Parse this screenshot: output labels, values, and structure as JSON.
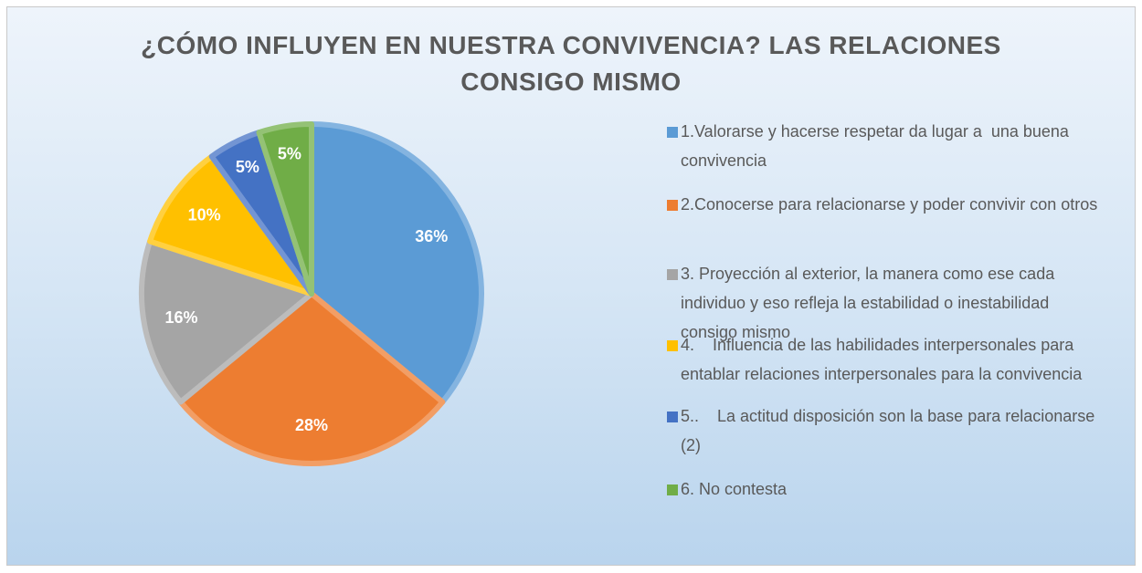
{
  "chart_data": {
    "type": "pie",
    "title": "¿CÓMO INFLUYEN EN NUESTRA CONVIVENCIA? LAS RELACIONES CONSIGO MISMO",
    "categories": [
      "1.Valorarse y hacerse respetar da lugar a  una buena convivencia",
      "2.Conocerse para relacionarse y poder convivir con otros",
      "3. Proyección al exterior, la manera como ese cada individuo y eso refleja la estabilidad o inestabilidad consigo mismo",
      "4.    Influencia de las habilidades interpersonales para entablar relaciones interpersonales para la convivencia",
      "5..    La actitud disposición son la base para relacionarse (2)",
      "6. No contesta"
    ],
    "values": [
      36,
      28,
      16,
      10,
      5,
      5
    ],
    "value_labels": [
      "36%",
      "28%",
      "16%",
      "10%",
      "5%",
      "5%"
    ],
    "colors": [
      "#5b9bd5",
      "#ed7d31",
      "#a5a5a5",
      "#ffc000",
      "#4472c4",
      "#70ad47"
    ],
    "legend": "right"
  }
}
